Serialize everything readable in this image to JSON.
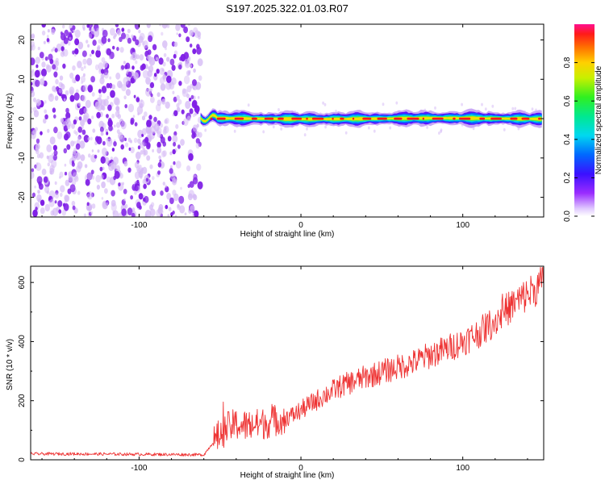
{
  "title": "S197.2025.322.01.03.R07",
  "chart_data": [
    {
      "type": "heatmap",
      "title": "S197.2025.322.01.03.R07",
      "xlabel": "Height of straight line (km)",
      "ylabel": "Frequency (Hz)",
      "xlim": [
        -167,
        150
      ],
      "ylim": [
        -25,
        24
      ],
      "xticks": [
        -100,
        0,
        100
      ],
      "yticks": [
        -20,
        -10,
        0,
        10,
        20
      ],
      "noise_region_x": [
        -167,
        -62
      ],
      "signal_region_x": [
        -62,
        150
      ],
      "signal_frequency_hz": 0,
      "colorbar": {
        "label": "Normalized spectral amplitude",
        "range": [
          0,
          1
        ],
        "ticks": [
          0.0,
          0.2,
          0.4,
          0.6,
          0.8
        ]
      },
      "colors": {
        "noise_dark": "#7f1fe6",
        "noise_light": "#d4b8f5",
        "line_peak": "#ff1a1a"
      }
    },
    {
      "type": "line",
      "xlabel": "Height of straight line (km)",
      "ylabel": "SNR (10 * v/v)",
      "xlim": [
        -167,
        150
      ],
      "ylim": [
        0,
        655
      ],
      "xticks": [
        -100,
        0,
        100
      ],
      "yticks": [
        0,
        200,
        400,
        600
      ],
      "series": [
        {
          "name": "SNR",
          "color": "#ee3333",
          "x": [
            -167,
            -140,
            -110,
            -80,
            -60,
            -52,
            -45,
            -40,
            -35,
            -25,
            -15,
            -5,
            5,
            15,
            25,
            40,
            55,
            70,
            80,
            90,
            100,
            110,
            115,
            120,
            125,
            130,
            140,
            150
          ],
          "y": [
            20,
            20,
            19,
            18,
            17,
            75,
            110,
            120,
            115,
            120,
            135,
            150,
            185,
            220,
            250,
            280,
            305,
            330,
            355,
            375,
            400,
            430,
            450,
            470,
            500,
            520,
            560,
            600
          ]
        }
      ]
    }
  ]
}
